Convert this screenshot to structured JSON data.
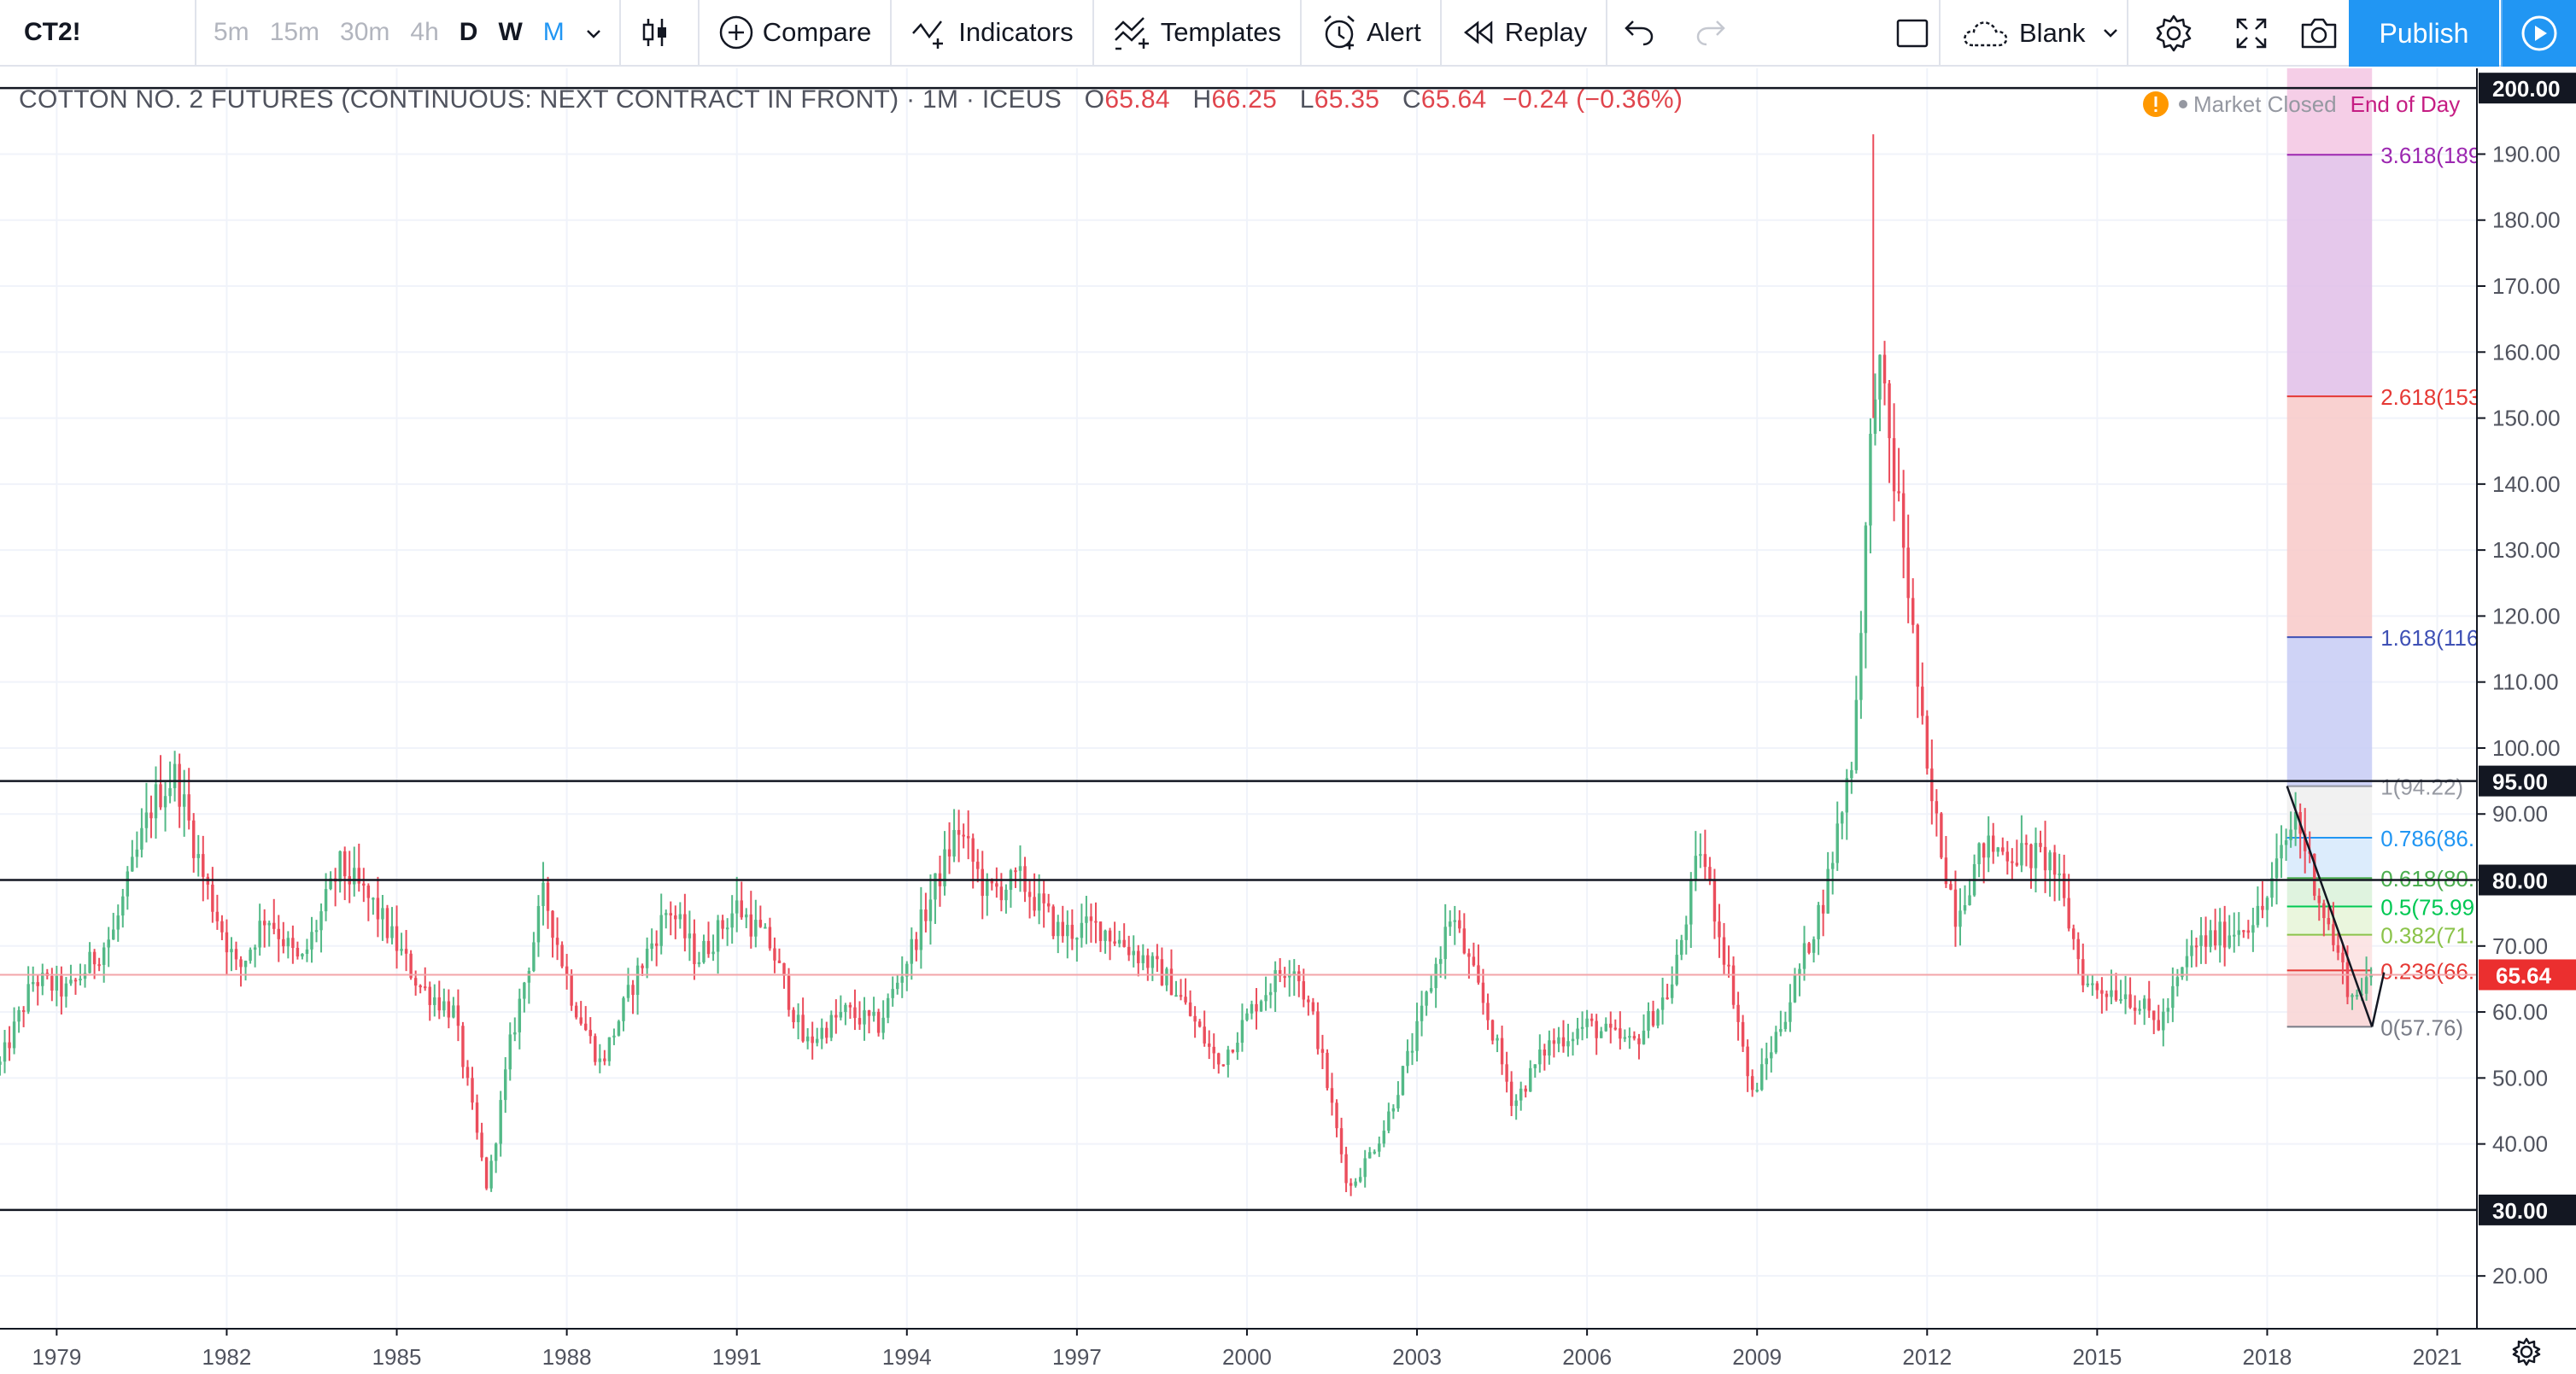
{
  "toolbar": {
    "symbol": "CT2!",
    "intervals": [
      "5m",
      "15m",
      "30m",
      "4h",
      "D",
      "W",
      "M"
    ],
    "compare": "Compare",
    "indicators": "Indicators",
    "templates": "Templates",
    "alert": "Alert",
    "replay": "Replay",
    "layout": "Blank",
    "publish": "Publish",
    "icons": [
      "chevron-down-icon",
      "candles-icon",
      "plus-circle-icon",
      "indicators-icon",
      "templates-icon",
      "alarm-clock-icon",
      "replay-icon",
      "undo-icon",
      "redo-icon",
      "square-icon",
      "cloud-icon",
      "gear-icon",
      "fullscreen-icon",
      "camera-icon",
      "play-icon"
    ]
  },
  "legend": {
    "title": "COTTON NO. 2 FUTURES (CONTINUOUS: NEXT CONTRACT IN FRONT) · 1M · ICEUS",
    "o_label": "O",
    "o": "65.84",
    "h_label": "H",
    "h": "66.25",
    "l_label": "L",
    "l": "65.35",
    "c_label": "C",
    "c": "65.64",
    "change": "−0.24 (−0.36%)",
    "status": "Market Closed",
    "end_of_day": "End of Day"
  },
  "colors": {
    "up": "#53b987",
    "down": "#eb4d5c",
    "accent": "#2196f3"
  },
  "chart_data": {
    "type": "candlestick",
    "x_ticks": [
      "1979",
      "1982",
      "1985",
      "1988",
      "1991",
      "1994",
      "1997",
      "2000",
      "2003",
      "2006",
      "2009",
      "2012",
      "2015",
      "2018",
      "2021"
    ],
    "y_ticks": [
      20,
      30,
      40,
      50,
      60,
      70,
      80,
      90,
      100,
      110,
      120,
      130,
      140,
      150,
      160,
      170,
      180,
      190,
      200
    ],
    "ylim": [
      12,
      203
    ],
    "xlim": [
      1978.0,
      2021.7
    ],
    "series_anchors": [
      [
        1978.0,
        52
      ],
      [
        1978.6,
        65
      ],
      [
        1979.2,
        63
      ],
      [
        1980.0,
        72
      ],
      [
        1980.7,
        92
      ],
      [
        1981.1,
        96
      ],
      [
        1981.6,
        80
      ],
      [
        1982.2,
        66
      ],
      [
        1982.7,
        75
      ],
      [
        1983.3,
        67
      ],
      [
        1984.0,
        82
      ],
      [
        1984.6,
        76
      ],
      [
        1985.4,
        64
      ],
      [
        1986.0,
        60
      ],
      [
        1986.6,
        33
      ],
      [
        1987.0,
        55
      ],
      [
        1987.6,
        78
      ],
      [
        1988.1,
        62
      ],
      [
        1988.6,
        52
      ],
      [
        1989.2,
        65
      ],
      [
        1989.8,
        76
      ],
      [
        1990.3,
        68
      ],
      [
        1991.0,
        76
      ],
      [
        1991.6,
        70
      ],
      [
        1992.2,
        55
      ],
      [
        1992.9,
        60
      ],
      [
        1993.5,
        58
      ],
      [
        1994.1,
        70
      ],
      [
        1994.9,
        88
      ],
      [
        1995.4,
        78
      ],
      [
        1996.0,
        80
      ],
      [
        1996.7,
        72
      ],
      [
        1997.4,
        73
      ],
      [
        1998.2,
        68
      ],
      [
        1998.7,
        64
      ],
      [
        1999.5,
        52
      ],
      [
        2000.2,
        62
      ],
      [
        2000.8,
        68
      ],
      [
        2001.2,
        58
      ],
      [
        2001.8,
        33
      ],
      [
        2002.4,
        42
      ],
      [
        2003.0,
        57
      ],
      [
        2003.6,
        75
      ],
      [
        2004.3,
        58
      ],
      [
        2004.7,
        46
      ],
      [
        2005.3,
        55
      ],
      [
        2006.0,
        58
      ],
      [
        2006.8,
        55
      ],
      [
        2007.5,
        64
      ],
      [
        2008.0,
        85
      ],
      [
        2008.6,
        62
      ],
      [
        2008.9,
        47
      ],
      [
        2009.5,
        60
      ],
      [
        2010.2,
        78
      ],
      [
        2010.7,
        100
      ],
      [
        2011.1,
        160
      ],
      [
        2011.6,
        130
      ],
      [
        2012.0,
        95
      ],
      [
        2012.5,
        75
      ],
      [
        2013.0,
        85
      ],
      [
        2013.6,
        84
      ],
      [
        2014.2,
        83
      ],
      [
        2014.8,
        64
      ],
      [
        2015.5,
        63
      ],
      [
        2016.1,
        58
      ],
      [
        2016.7,
        70
      ],
      [
        2017.3,
        72
      ],
      [
        2017.9,
        75
      ],
      [
        2018.5,
        90
      ],
      [
        2019.0,
        75
      ],
      [
        2019.5,
        62
      ],
      [
        2019.8,
        65.64
      ]
    ],
    "horizontal_lines": [
      {
        "value": 200,
        "label": "200.00"
      },
      {
        "value": 95,
        "label": "95.00"
      },
      {
        "value": 80,
        "label": "80.00"
      },
      {
        "value": 30,
        "label": "30.00"
      }
    ],
    "last_price": {
      "value": 65.64,
      "label": "65.64"
    },
    "fib_levels": [
      {
        "level": "3.618(189",
        "value": 189.9,
        "color": "#9c27b0",
        "fill": "#e1bee7"
      },
      {
        "level": "2.618(153",
        "value": 153.3,
        "color": "#e53935",
        "fill": "#f8c9c8"
      },
      {
        "level": "1.618(116",
        "value": 116.8,
        "color": "#3f51b5",
        "fill": "#c7cbf4"
      },
      {
        "level": "1(94.22)",
        "value": 94.22,
        "color": "#9598a1",
        "fill": "#eeeeee"
      },
      {
        "level": "0.786(86.",
        "value": 86.4,
        "color": "#2196f3",
        "fill": "#d6e9fb"
      },
      {
        "level": "0.618(80.",
        "value": 80.3,
        "color": "#4caf50",
        "fill": "#d9f1d9"
      },
      {
        "level": "0.5(75.99",
        "value": 75.99,
        "color": "#00c853",
        "fill": "#e6f5d7"
      },
      {
        "level": "0.382(71.",
        "value": 71.7,
        "color": "#8bc34a",
        "fill": "#fbe1e1"
      },
      {
        "level": "0.236(66.",
        "value": 66.3,
        "color": "#e53935",
        "fill": "#f8d3d3"
      },
      {
        "level": "0(57.76)",
        "value": 57.76,
        "color": "#787b86",
        "fill": "none"
      }
    ],
    "fib_x": [
      2018.35,
      2019.85
    ],
    "trend_line": [
      [
        2018.35,
        94.22
      ],
      [
        2019.85,
        57.76
      ]
    ]
  }
}
